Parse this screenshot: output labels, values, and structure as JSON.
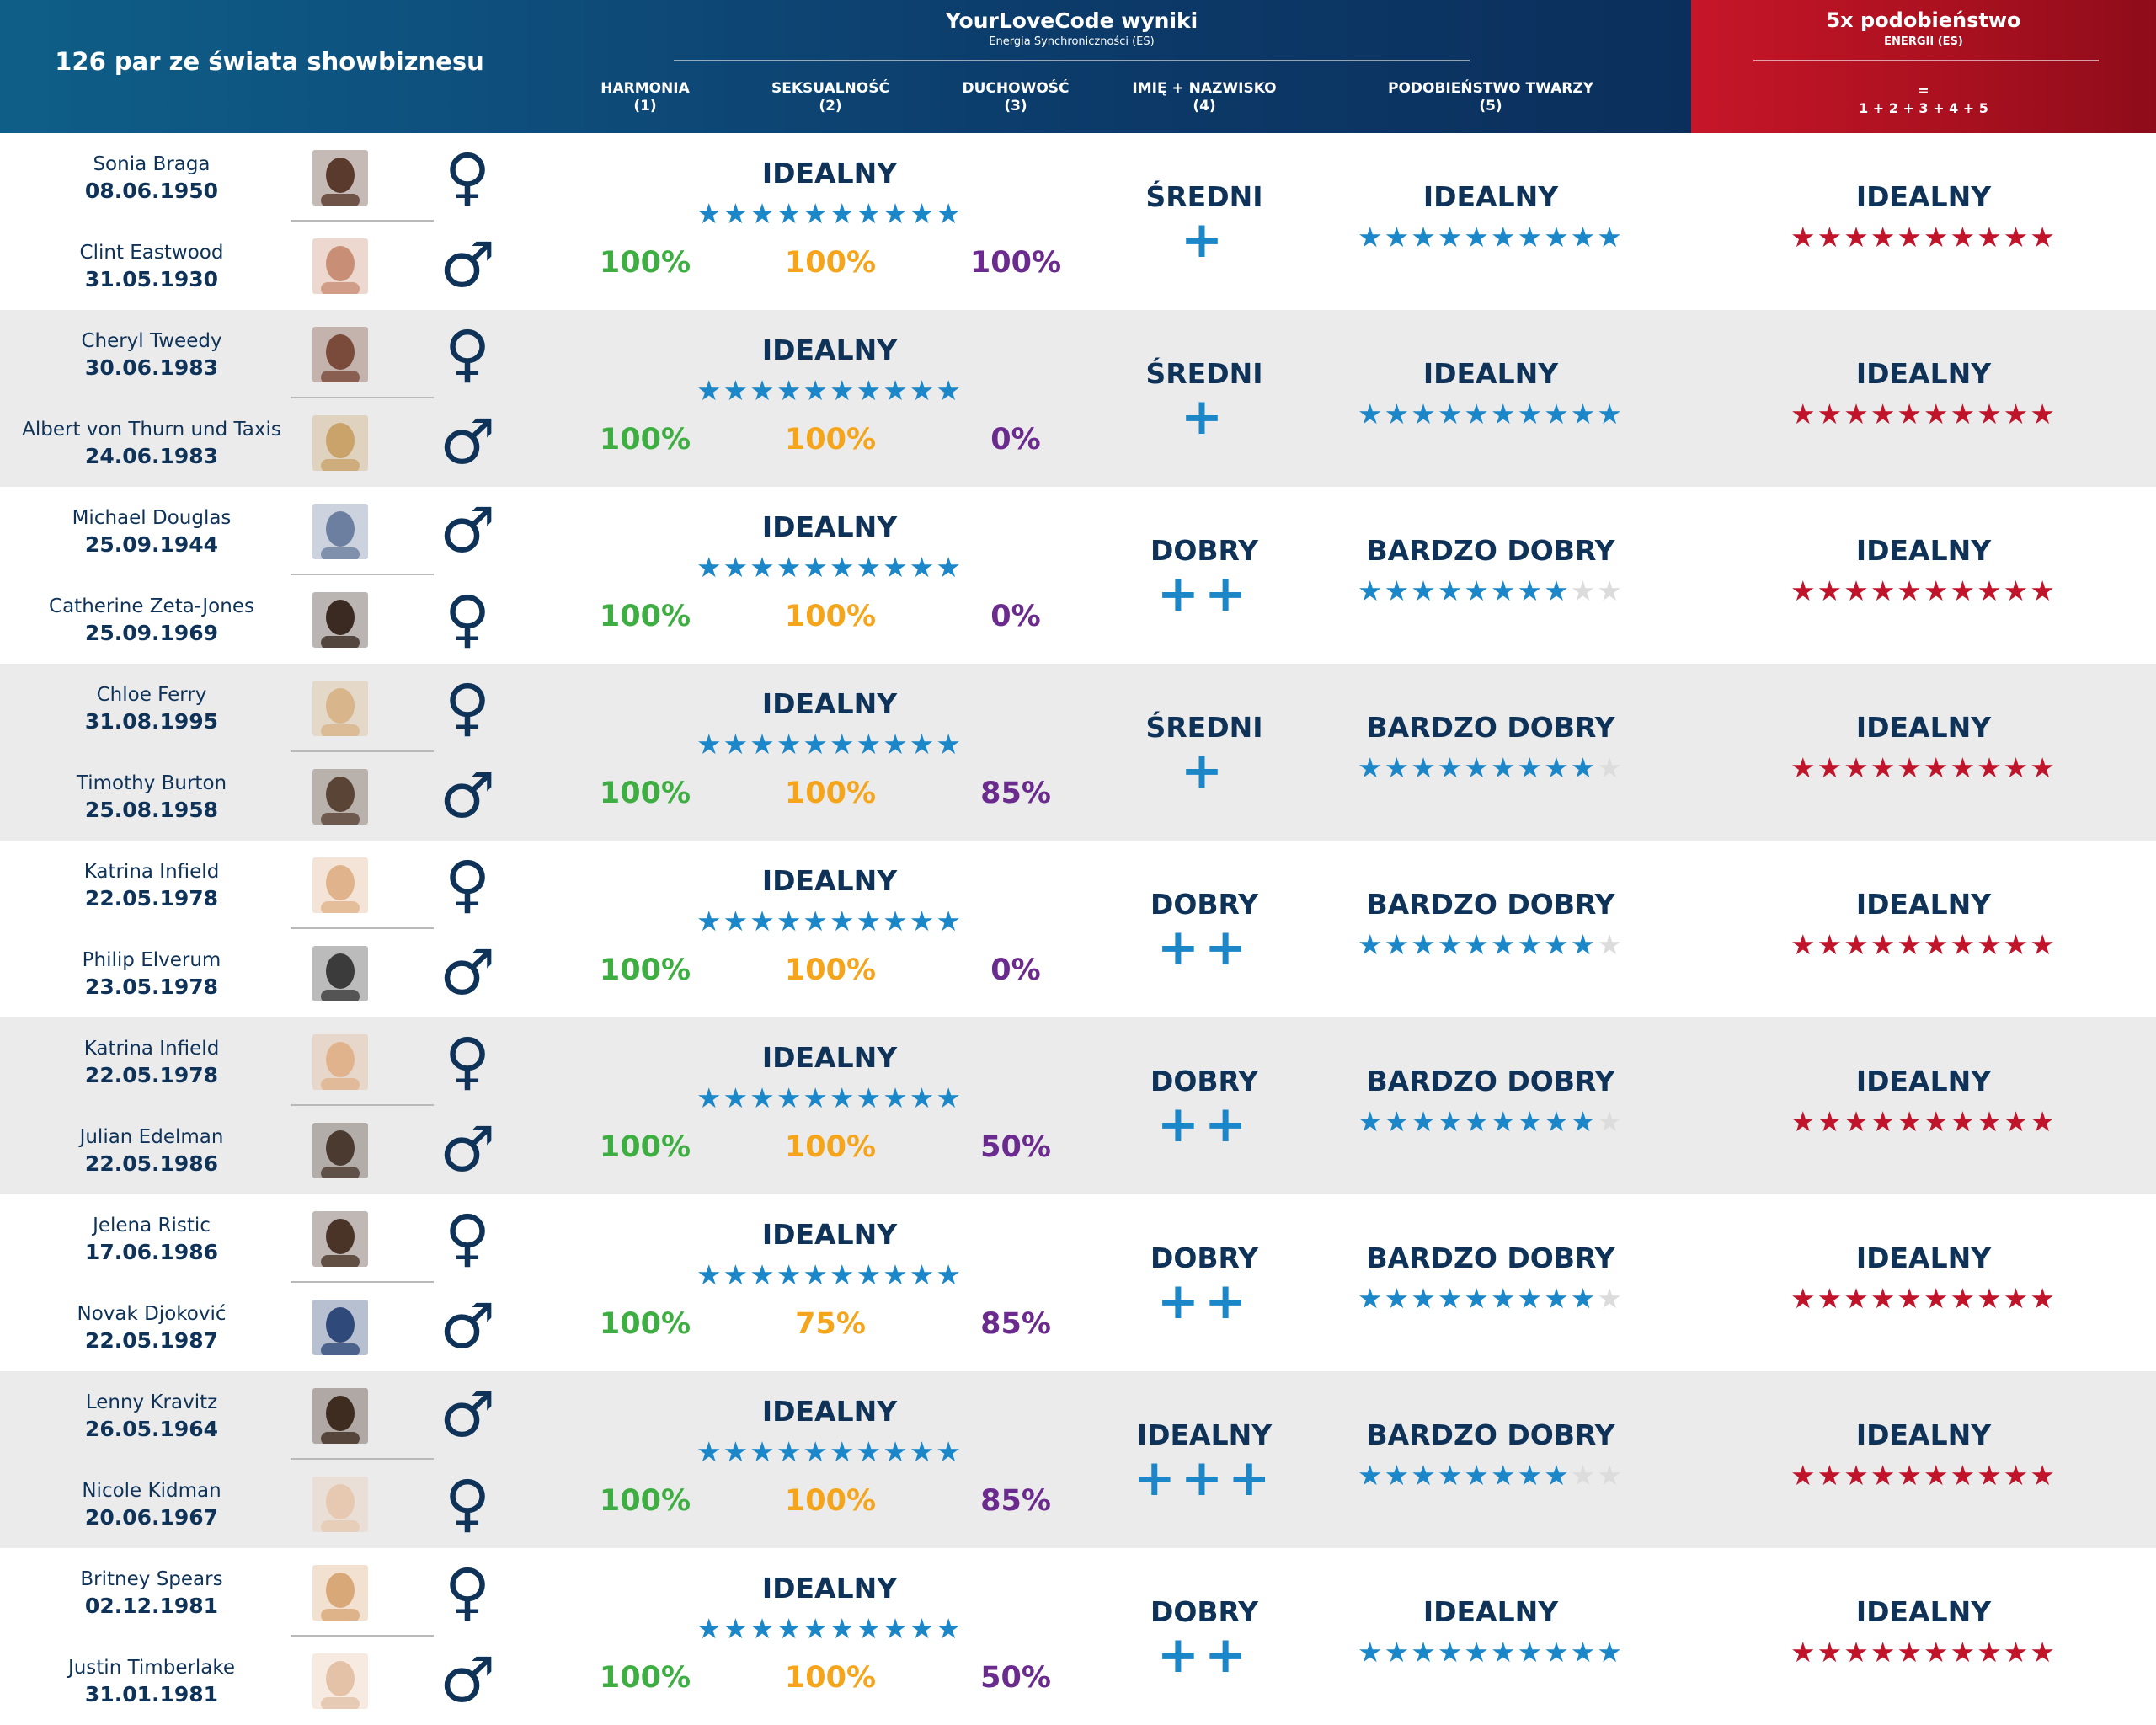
{
  "header": {
    "couples_title": "126 par ze świata showbiznesu",
    "ylc_title": "YourLoveCode wyniki",
    "ylc_subtitle": "Energia Synchroniczności (ES)",
    "col_harmonia": "HARMONIA",
    "col_harmonia_num": "(1)",
    "col_seksualnosc": "SEKSUALNOŚĆ",
    "col_seksualnosc_num": "(2)",
    "col_duchowosc": "DUCHOWOŚĆ",
    "col_duchowosc_num": "(3)",
    "col_imie": "IMIĘ + NAZWISKO",
    "col_imie_num": "(4)",
    "col_twarz": "PODOBIEŃSTWO TWARZY",
    "col_twarz_num": "(5)",
    "fivex_title": "5x podobieństwo",
    "fivex_subtitle": "ENERGII (ES)",
    "fivex_eq": "=",
    "fivex_formula": "1 + 2 + 3 + 4 + 5"
  },
  "colors": {
    "navy": "#0e3258",
    "blue_star": "#1b87c9",
    "red_star": "#c0142a",
    "green": "#3fae42",
    "orange": "#f4a51c",
    "purple": "#6a2a8e"
  },
  "rows": [
    {
      "p1": {
        "name": "Sonia Braga",
        "date": "08.06.1950",
        "gender": "♀",
        "gender_icon": "female-symbol-icon",
        "avatar_color": "#5a3a2c"
      },
      "p2": {
        "name": "Clint Eastwood",
        "date": "31.05.1930",
        "gender": "♂",
        "gender_icon": "male-symbol-icon",
        "avatar_color": "#c98f76"
      },
      "main_rating": "IDEALNY",
      "main_stars": 10,
      "harmonia": "100%",
      "seksualnosc": "100%",
      "duchowosc": "100%",
      "name_rating": "ŚREDNI",
      "name_plus": "+",
      "face_rating": "IDEALNY",
      "face_stars": 10,
      "total_rating": "IDEALNY",
      "total_stars": 10
    },
    {
      "p1": {
        "name": "Cheryl Tweedy",
        "date": "30.06.1983",
        "gender": "♀",
        "gender_icon": "female-symbol-icon",
        "avatar_color": "#7a4a3a"
      },
      "p2": {
        "name": "Albert von Thurn und Taxis",
        "date": "24.06.1983",
        "gender": "♂",
        "gender_icon": "male-symbol-icon",
        "avatar_color": "#c9a36a"
      },
      "main_rating": "IDEALNY",
      "main_stars": 10,
      "harmonia": "100%",
      "seksualnosc": "100%",
      "duchowosc": "0%",
      "name_rating": "ŚREDNI",
      "name_plus": "+",
      "face_rating": "IDEALNY",
      "face_stars": 10,
      "total_rating": "IDEALNY",
      "total_stars": 10
    },
    {
      "p1": {
        "name": "Michael Douglas",
        "date": "25.09.1944",
        "gender": "♂",
        "gender_icon": "male-symbol-icon",
        "avatar_color": "#6c7fa0"
      },
      "p2": {
        "name": "Catherine Zeta-Jones",
        "date": "25.09.1969",
        "gender": "♀",
        "gender_icon": "female-symbol-icon",
        "avatar_color": "#3a2a22"
      },
      "main_rating": "IDEALNY",
      "main_stars": 10,
      "harmonia": "100%",
      "seksualnosc": "100%",
      "duchowosc": "0%",
      "name_rating": "DOBRY",
      "name_plus": "++",
      "face_rating": "BARDZO DOBRY",
      "face_stars": 8,
      "total_rating": "IDEALNY",
      "total_stars": 10
    },
    {
      "p1": {
        "name": "Chloe Ferry",
        "date": "31.08.1995",
        "gender": "♀",
        "gender_icon": "female-symbol-icon",
        "avatar_color": "#d8b58a"
      },
      "p2": {
        "name": "Timothy Burton",
        "date": "25.08.1958",
        "gender": "♂",
        "gender_icon": "male-symbol-icon",
        "avatar_color": "#5a4436"
      },
      "main_rating": "IDEALNY",
      "main_stars": 10,
      "harmonia": "100%",
      "seksualnosc": "100%",
      "duchowosc": "85%",
      "name_rating": "ŚREDNI",
      "name_plus": "+",
      "face_rating": "BARDZO DOBRY",
      "face_stars": 9,
      "total_rating": "IDEALNY",
      "total_stars": 10
    },
    {
      "p1": {
        "name": "Katrina Infield",
        "date": "22.05.1978",
        "gender": "♀",
        "gender_icon": "female-symbol-icon",
        "avatar_color": "#e0b38c"
      },
      "p2": {
        "name": "Philip Elverum",
        "date": "23.05.1978",
        "gender": "♂",
        "gender_icon": "male-symbol-icon",
        "avatar_color": "#3b3b3b"
      },
      "main_rating": "IDEALNY",
      "main_stars": 10,
      "harmonia": "100%",
      "seksualnosc": "100%",
      "duchowosc": "0%",
      "name_rating": "DOBRY",
      "name_plus": "++",
      "face_rating": "BARDZO DOBRY",
      "face_stars": 9,
      "total_rating": "IDEALNY",
      "total_stars": 10
    },
    {
      "p1": {
        "name": "Katrina Infield",
        "date": "22.05.1978",
        "gender": "♀",
        "gender_icon": "female-symbol-icon",
        "avatar_color": "#e0b38c"
      },
      "p2": {
        "name": "Julian Edelman",
        "date": "22.05.1986",
        "gender": "♂",
        "gender_icon": "male-symbol-icon",
        "avatar_color": "#4a3a30"
      },
      "main_rating": "IDEALNY",
      "main_stars": 10,
      "harmonia": "100%",
      "seksualnosc": "100%",
      "duchowosc": "50%",
      "name_rating": "DOBRY",
      "name_plus": "++",
      "face_rating": "BARDZO DOBRY",
      "face_stars": 9,
      "total_rating": "IDEALNY",
      "total_stars": 10
    },
    {
      "p1": {
        "name": "Jelena Ristic",
        "date": "17.06.1986",
        "gender": "♀",
        "gender_icon": "female-symbol-icon",
        "avatar_color": "#4a3428"
      },
      "p2": {
        "name": "Novak Djoković",
        "date": "22.05.1987",
        "gender": "♂",
        "gender_icon": "male-symbol-icon",
        "avatar_color": "#2f4a7a"
      },
      "main_rating": "IDEALNY",
      "main_stars": 10,
      "harmonia": "100%",
      "seksualnosc": "75%",
      "duchowosc": "85%",
      "name_rating": "DOBRY",
      "name_plus": "++",
      "face_rating": "BARDZO DOBRY",
      "face_stars": 9,
      "total_rating": "IDEALNY",
      "total_stars": 10
    },
    {
      "p1": {
        "name": "Lenny Kravitz",
        "date": "26.05.1964",
        "gender": "♂",
        "gender_icon": "male-symbol-icon",
        "avatar_color": "#3e2c20"
      },
      "p2": {
        "name": "Nicole Kidman",
        "date": "20.06.1967",
        "gender": "♀",
        "gender_icon": "female-symbol-icon",
        "avatar_color": "#e6c9b0"
      },
      "main_rating": "IDEALNY",
      "main_stars": 10,
      "harmonia": "100%",
      "seksualnosc": "100%",
      "duchowosc": "85%",
      "name_rating": "IDEALNY",
      "name_plus": "+++",
      "face_rating": "BARDZO DOBRY",
      "face_stars": 8,
      "total_rating": "IDEALNY",
      "total_stars": 10
    },
    {
      "p1": {
        "name": "Britney Spears",
        "date": "02.12.1981",
        "gender": "♀",
        "gender_icon": "female-symbol-icon",
        "avatar_color": "#d9a878"
      },
      "p2": {
        "name": "Justin Timberlake",
        "date": "31.01.1981",
        "gender": "♂",
        "gender_icon": "male-symbol-icon",
        "avatar_color": "#e4c2a8"
      },
      "main_rating": "IDEALNY",
      "main_stars": 10,
      "harmonia": "100%",
      "seksualnosc": "100%",
      "duchowosc": "50%",
      "name_rating": "DOBRY",
      "name_plus": "++",
      "face_rating": "IDEALNY",
      "face_stars": 10,
      "total_rating": "IDEALNY",
      "total_stars": 10
    }
  ]
}
